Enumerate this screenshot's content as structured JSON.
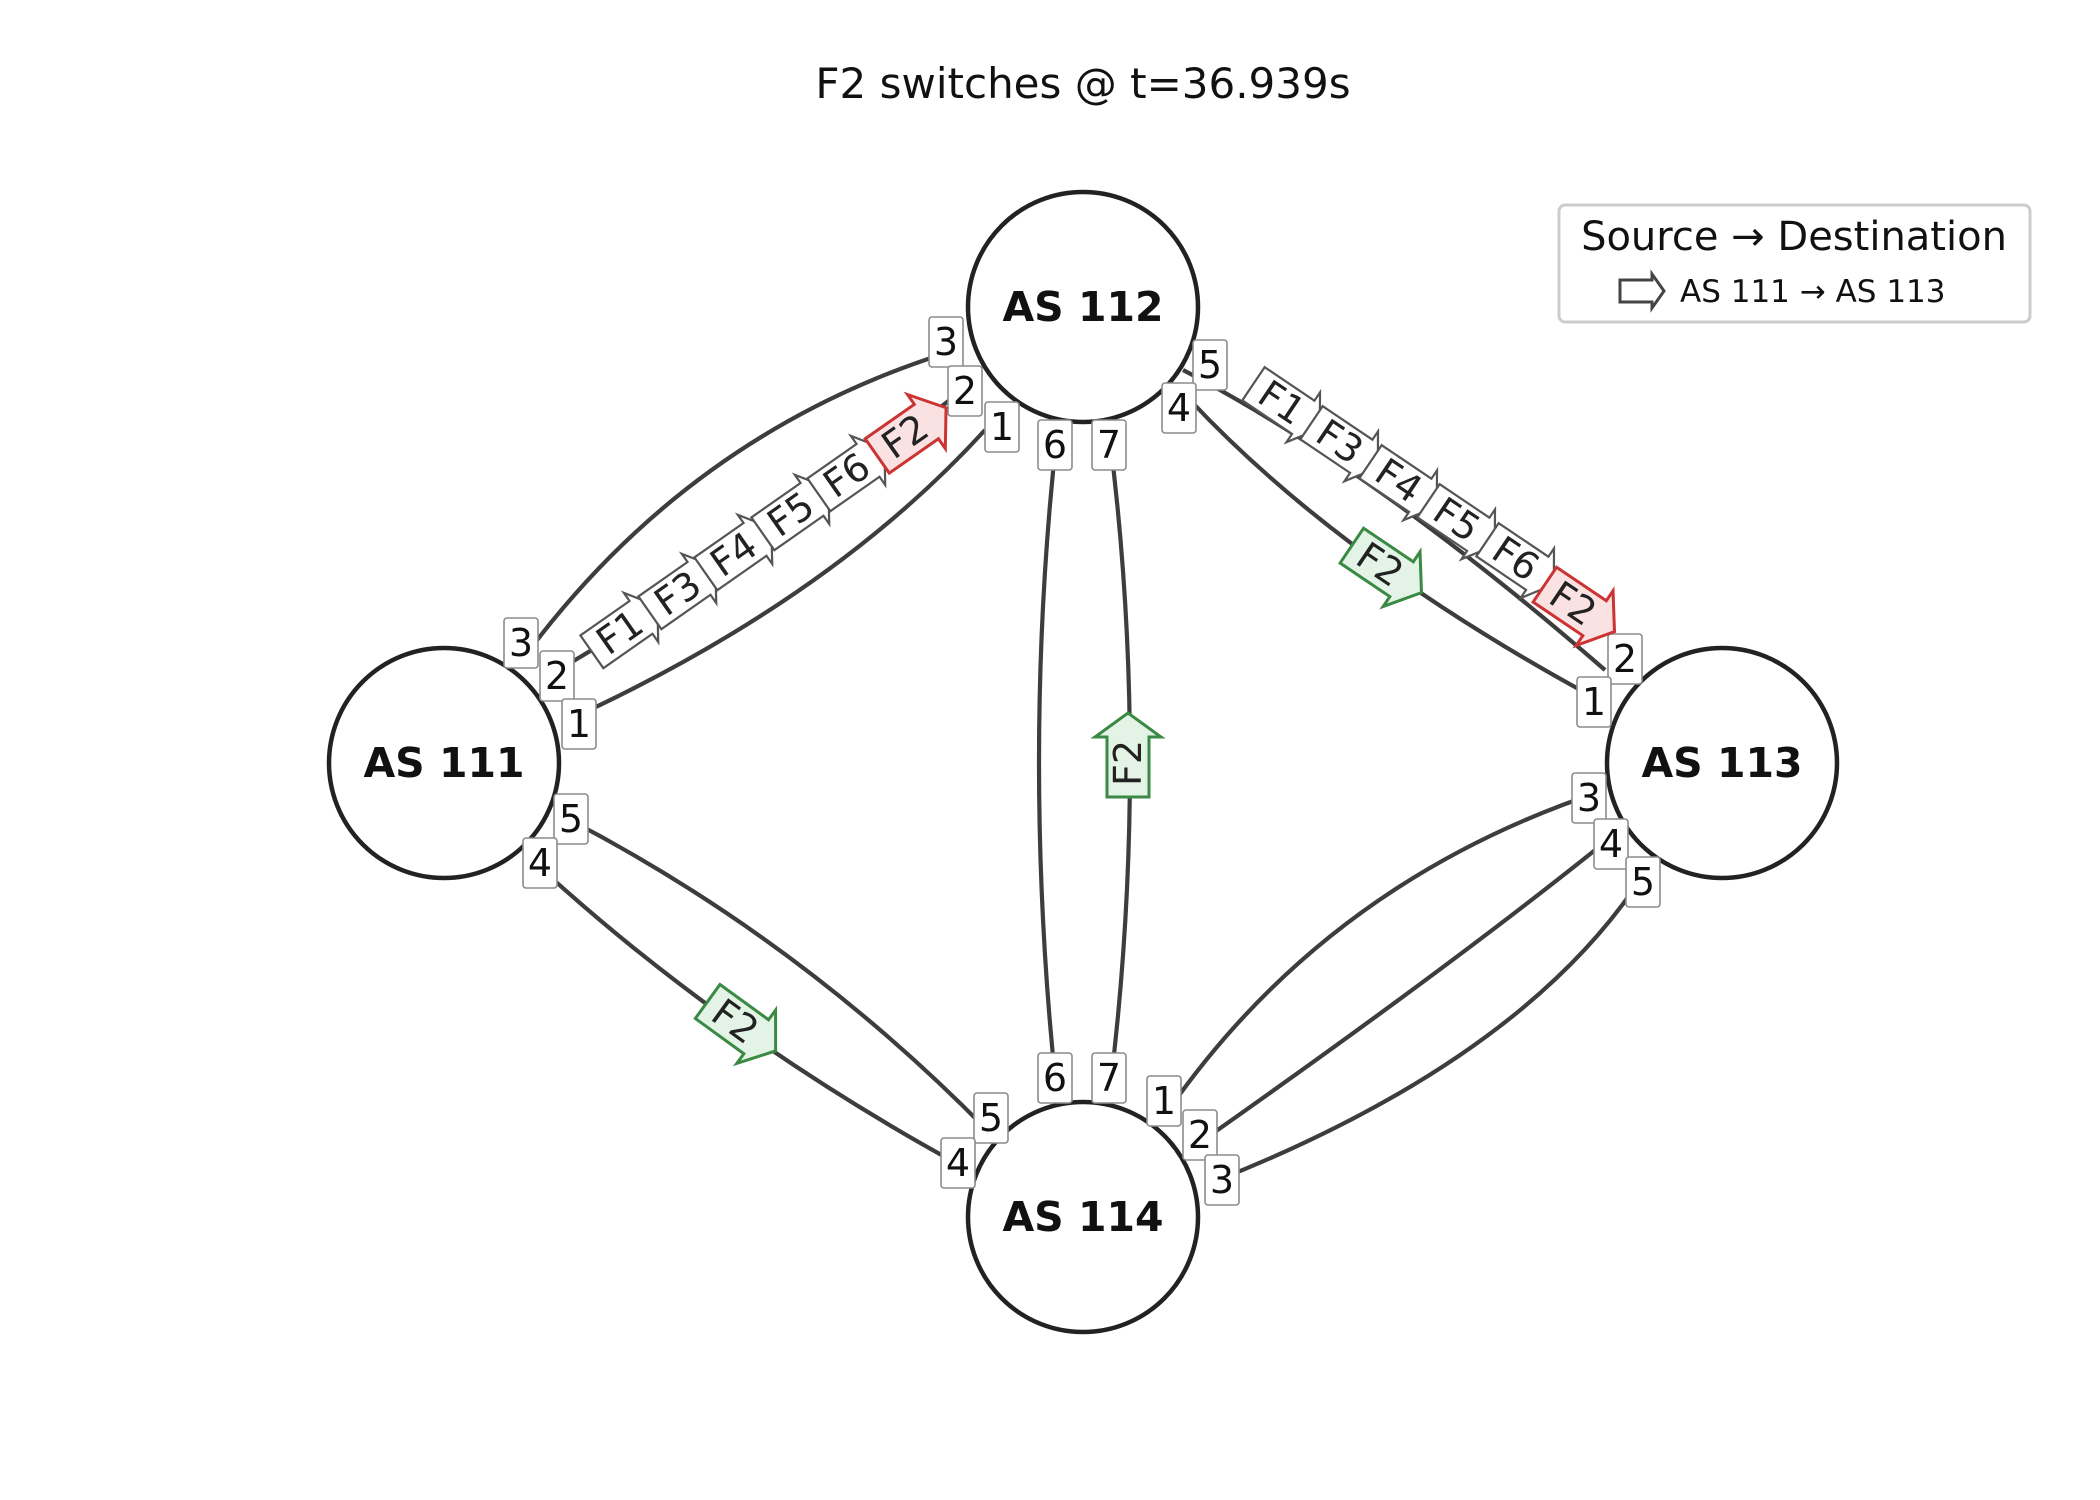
{
  "title": "F2 switches @ t=36.939s",
  "legend": {
    "title": "Source → Destination",
    "item": "AS 111 → AS 113"
  },
  "nodes": {
    "as111": "AS 111",
    "as112": "AS 112",
    "as113": "AS 113",
    "as114": "AS 114"
  },
  "ports": {
    "as111": [
      "3",
      "2",
      "1",
      "5",
      "4"
    ],
    "as112": [
      "3",
      "2",
      "1",
      "6",
      "7",
      "5",
      "4"
    ],
    "as113": [
      "2",
      "1",
      "3",
      "4",
      "5"
    ],
    "as114": [
      "6",
      "7",
      "1",
      "2",
      "3",
      "5",
      "4"
    ]
  },
  "flows": {
    "path_111_112": [
      "F1",
      "F3",
      "F4",
      "F5",
      "F6",
      "F2"
    ],
    "path_112_113": [
      "F1",
      "F3",
      "F4",
      "F5",
      "F6",
      "F2"
    ],
    "switch_112_113": "F2",
    "switch_114_112": "F2",
    "switch_111_114": "F2"
  },
  "colors": {
    "active_flow": "#cc3333",
    "switched_flow": "#3a8a44",
    "idle_flow": "#555555"
  }
}
